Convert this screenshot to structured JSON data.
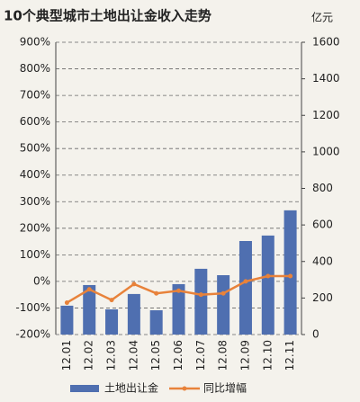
{
  "chart_data": {
    "type": "bar_line",
    "title": "10个典型城市土地出让金收入走势",
    "y2_unit": "亿元",
    "categories": [
      "12.01",
      "12.02",
      "12.03",
      "12.04",
      "12.05",
      "12.06",
      "12.07",
      "12.08",
      "12.09",
      "12.10",
      "12.11"
    ],
    "series": [
      {
        "name": "土地出让金",
        "type": "bar",
        "axis": "y2",
        "color": "#4f6fb0",
        "values": [
          158,
          271,
          138,
          222,
          133,
          276,
          360,
          325,
          512,
          542,
          680
        ]
      },
      {
        "name": "同比增幅",
        "type": "line",
        "axis": "y",
        "color": "#e8823a",
        "values": [
          -80,
          -30,
          -70,
          -10,
          -45,
          -35,
          -50,
          -45,
          0,
          20,
          20
        ]
      }
    ],
    "ylim": [
      -200,
      900
    ],
    "yticks": [
      {
        "value": 900,
        "label": "900%"
      },
      {
        "value": 800,
        "label": "800%"
      },
      {
        "value": 700,
        "label": "700%"
      },
      {
        "value": 600,
        "label": "600%"
      },
      {
        "value": 500,
        "label": "500%"
      },
      {
        "value": 400,
        "label": "400%"
      },
      {
        "value": 300,
        "label": "300%"
      },
      {
        "value": 200,
        "label": "200%"
      },
      {
        "value": 100,
        "label": "100%"
      },
      {
        "value": 0,
        "label": "0%"
      },
      {
        "value": -100,
        "label": "-100%"
      },
      {
        "value": -200,
        "label": "-200%"
      }
    ],
    "y2lim": [
      0,
      1600
    ],
    "y2ticks": [
      0,
      200,
      400,
      600,
      800,
      1000,
      1200,
      1400,
      1600
    ],
    "grid": true
  }
}
